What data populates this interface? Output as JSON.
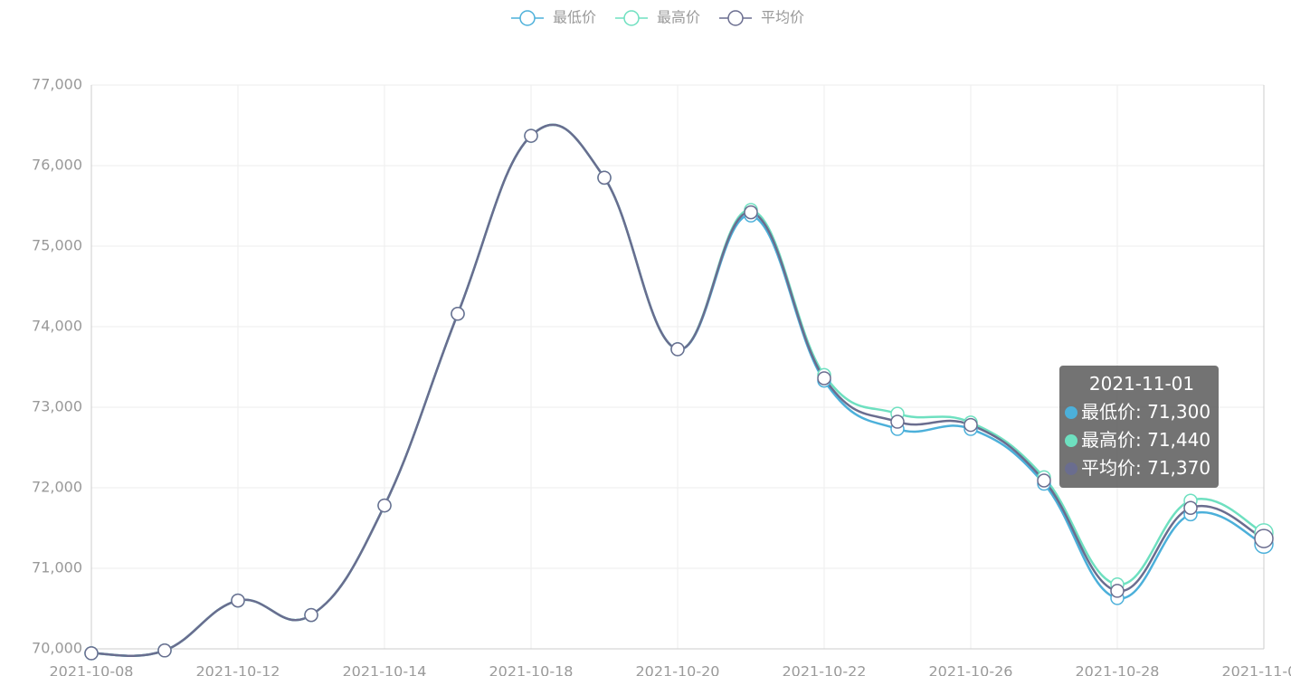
{
  "chart_data": {
    "type": "line",
    "categories": [
      "2021-10-08",
      null,
      "2021-10-12",
      null,
      "2021-10-14",
      null,
      "2021-10-18",
      null,
      "2021-10-20",
      null,
      "2021-10-22",
      null,
      "2021-10-26",
      null,
      "2021-10-28",
      null,
      "2021-11-01"
    ],
    "series": [
      {
        "name": "最低价",
        "color": "#4cb0da",
        "values": [
          69945,
          69980,
          70600,
          70420,
          71780,
          74160,
          76370,
          75850,
          73720,
          75380,
          73330,
          72730,
          72730,
          72050,
          70630,
          71670,
          71300
        ]
      },
      {
        "name": "最高价",
        "color": "#6ee0c0",
        "values": [
          69945,
          69980,
          70600,
          70420,
          71780,
          74160,
          76370,
          75850,
          73720,
          75450,
          73400,
          72920,
          72810,
          72130,
          70800,
          71840,
          71440
        ]
      },
      {
        "name": "平均价",
        "color": "#6a6d8f",
        "values": [
          69945,
          69980,
          70600,
          70420,
          71780,
          74160,
          76370,
          75850,
          73720,
          75420,
          73360,
          72820,
          72780,
          72090,
          70720,
          71750,
          71370
        ]
      }
    ],
    "ylim": [
      70000,
      77000
    ],
    "yticks": [
      {
        "value": 70000,
        "label": "70,000"
      },
      {
        "value": 71000,
        "label": "71,000"
      },
      {
        "value": 72000,
        "label": "72,000"
      },
      {
        "value": 73000,
        "label": "73,000"
      },
      {
        "value": 74000,
        "label": "74,000"
      },
      {
        "value": 75000,
        "label": "75,000"
      },
      {
        "value": 76000,
        "label": "76,000"
      },
      {
        "value": 77000,
        "label": "77,000"
      }
    ],
    "grid": true,
    "legend": "top",
    "tooltip": {
      "separator": ": ",
      "value_labels": [
        "71,300",
        "71,440",
        "71,370"
      ]
    }
  }
}
